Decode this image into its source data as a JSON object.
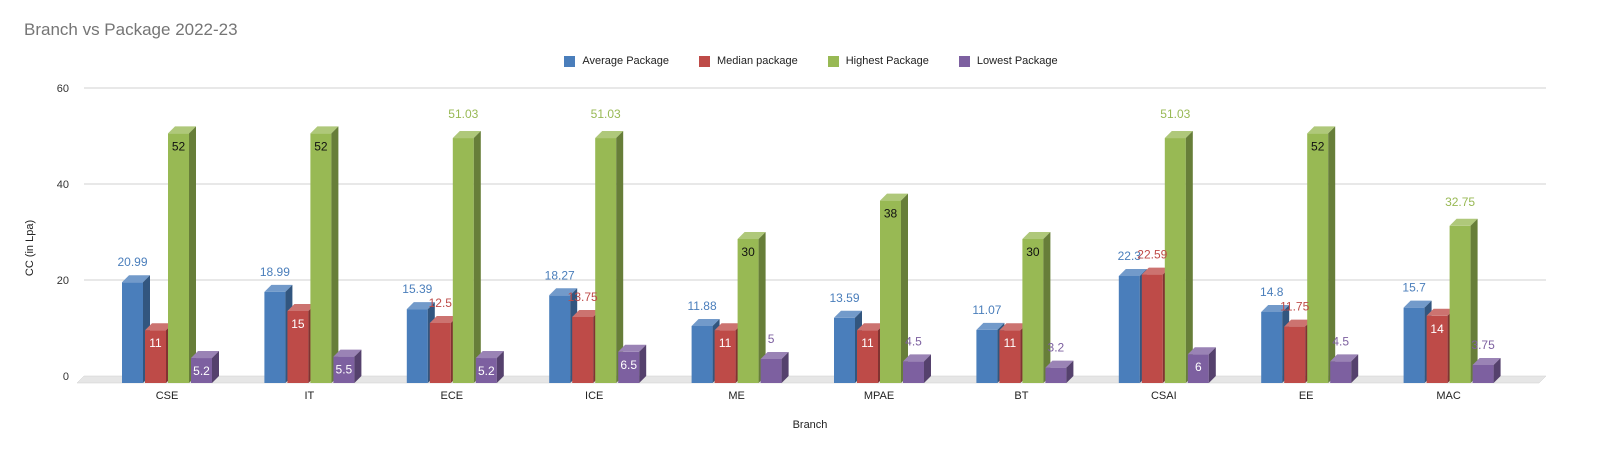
{
  "chart_data": {
    "type": "bar",
    "title": "Branch vs Package 2022-23",
    "xlabel": "Branch",
    "ylabel": "CC (in Lpa)",
    "ylim": [
      0,
      60
    ],
    "yticks": [
      0,
      20,
      40,
      60
    ],
    "grid": true,
    "legend_position": "top-center",
    "categories": [
      "CSE",
      "IT",
      "ECE",
      "ICE",
      "ME",
      "MPAE",
      "BT",
      "CSAI",
      "EE",
      "MAC"
    ],
    "series": [
      {
        "name": "Average Package",
        "color": "#4a7ebb",
        "label_color": "#4a7ebb",
        "values": [
          20.99,
          18.99,
          15.39,
          18.27,
          11.88,
          13.59,
          11.07,
          22.3,
          14.8,
          15.7
        ]
      },
      {
        "name": "Median package",
        "color": "#be4b48",
        "label_color": "#be4b48",
        "values": [
          11,
          15,
          12.5,
          13.75,
          11,
          11,
          11,
          22.59,
          11.75,
          14
        ]
      },
      {
        "name": "Highest Package",
        "color": "#98b954",
        "label_color": "#98b954",
        "values": [
          52,
          52,
          51.03,
          51.03,
          30,
          38,
          30,
          51.03,
          52,
          32.75
        ]
      },
      {
        "name": "Lowest Package",
        "color": "#7d60a0",
        "label_color": "#7d60a0",
        "values": [
          5.2,
          5.5,
          5.2,
          6.5,
          5,
          4.5,
          3.2,
          6,
          4.5,
          3.75
        ]
      }
    ]
  }
}
